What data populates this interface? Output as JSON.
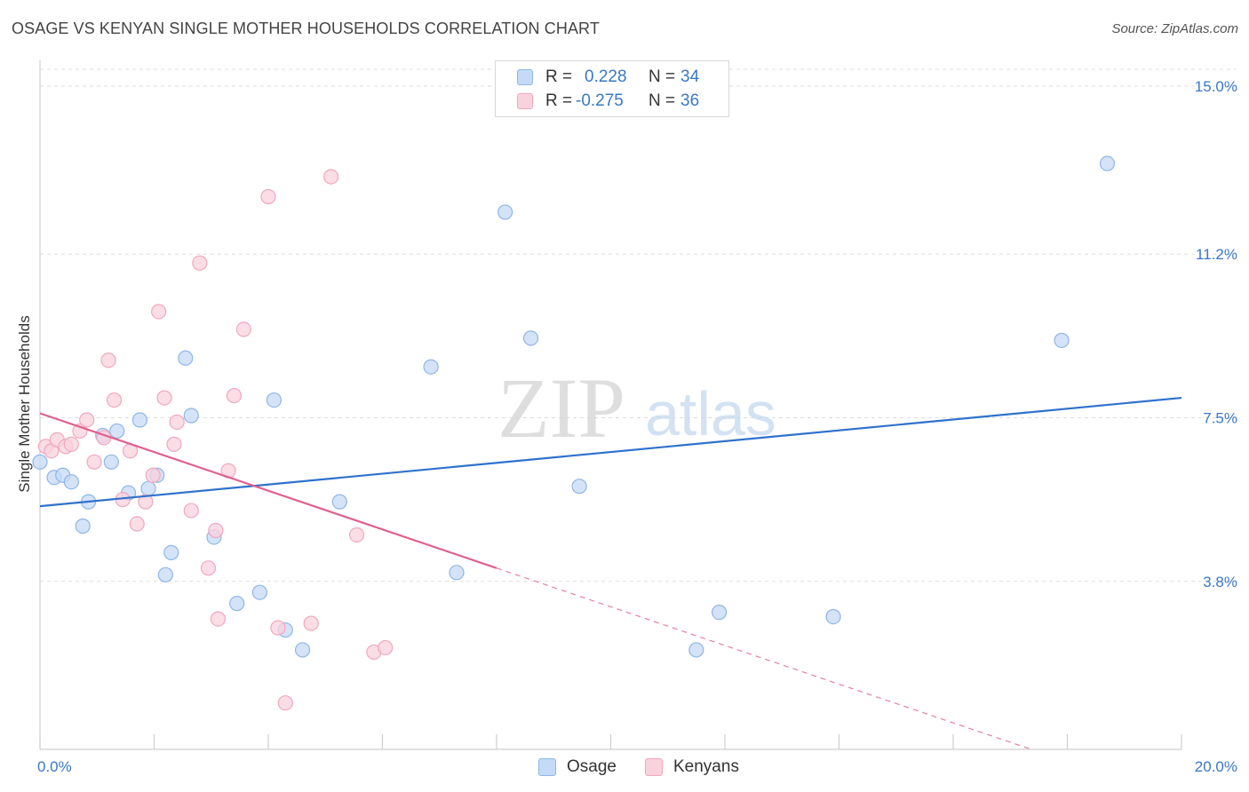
{
  "header": {
    "title": "OSAGE VS KENYAN SINGLE MOTHER HOUSEHOLDS CORRELATION CHART",
    "source": "Source: ZipAtlas.com"
  },
  "watermark": {
    "zip": "ZIP",
    "atlas": "atlas"
  },
  "legend": {
    "rows": [
      {
        "r_label": "R =",
        "r_value": "0.228",
        "n_label": "N =",
        "n_value": "34"
      },
      {
        "r_label": "R =",
        "r_value": "-0.275",
        "n_label": "N =",
        "n_value": "36"
      }
    ]
  },
  "colors": {
    "osage_fill": "#c5daf6",
    "osage_stroke": "#8fb6e8",
    "osage_line": "#2f72cc",
    "kenyan_fill": "#fad2de",
    "kenyan_stroke": "#f0a8bf",
    "kenyan_line": "#e0608e",
    "axis_text": "#3a78c8",
    "grid": "#dddddd"
  },
  "chart_data": {
    "type": "scatter",
    "title": "OSAGE VS KENYAN SINGLE MOTHER HOUSEHOLDS CORRELATION CHART",
    "xlabel": "",
    "ylabel": "Single Mother Households",
    "xlim": [
      0,
      20
    ],
    "ylim": [
      0,
      15.0
    ],
    "x_tick_labels": [
      "0.0%",
      "20.0%"
    ],
    "y_ticks": [
      3.8,
      7.5,
      11.2,
      15.0
    ],
    "y_tick_labels": [
      "3.8%",
      "7.5%",
      "11.2%",
      "15.0%"
    ],
    "grid": true,
    "legend_position": "top-center",
    "series": [
      {
        "name": "Osage",
        "r": 0.228,
        "n": 34,
        "points": [
          [
            0.0,
            6.5
          ],
          [
            0.25,
            6.15
          ],
          [
            0.4,
            6.2
          ],
          [
            0.55,
            6.05
          ],
          [
            0.75,
            5.05
          ],
          [
            0.85,
            5.6
          ],
          [
            1.1,
            7.1
          ],
          [
            1.25,
            6.5
          ],
          [
            1.35,
            7.2
          ],
          [
            1.55,
            5.8
          ],
          [
            1.75,
            7.45
          ],
          [
            1.9,
            5.9
          ],
          [
            2.05,
            6.2
          ],
          [
            2.2,
            3.95
          ],
          [
            2.3,
            4.45
          ],
          [
            2.55,
            8.85
          ],
          [
            2.65,
            7.55
          ],
          [
            3.05,
            4.8
          ],
          [
            3.45,
            3.3
          ],
          [
            3.85,
            3.55
          ],
          [
            4.1,
            7.9
          ],
          [
            4.3,
            2.7
          ],
          [
            4.6,
            2.25
          ],
          [
            5.25,
            5.6
          ],
          [
            6.85,
            8.65
          ],
          [
            7.3,
            4.0
          ],
          [
            8.15,
            12.15
          ],
          [
            8.6,
            9.3
          ],
          [
            9.45,
            5.95
          ],
          [
            11.5,
            2.25
          ],
          [
            11.9,
            3.1
          ],
          [
            13.9,
            3.0
          ],
          [
            17.9,
            9.25
          ],
          [
            18.7,
            13.25
          ]
        ],
        "trend": {
          "x": [
            0,
            20
          ],
          "y": [
            5.5,
            7.95
          ]
        }
      },
      {
        "name": "Kenyans",
        "r": -0.275,
        "n": 36,
        "points": [
          [
            0.1,
            6.85
          ],
          [
            0.2,
            6.75
          ],
          [
            0.3,
            7.0
          ],
          [
            0.45,
            6.85
          ],
          [
            0.55,
            6.9
          ],
          [
            0.7,
            7.2
          ],
          [
            0.82,
            7.45
          ],
          [
            0.95,
            6.5
          ],
          [
            1.12,
            7.05
          ],
          [
            1.2,
            8.8
          ],
          [
            1.3,
            7.9
          ],
          [
            1.45,
            5.65
          ],
          [
            1.58,
            6.75
          ],
          [
            1.7,
            5.1
          ],
          [
            1.85,
            5.6
          ],
          [
            1.98,
            6.2
          ],
          [
            2.08,
            9.9
          ],
          [
            2.18,
            7.95
          ],
          [
            2.35,
            6.9
          ],
          [
            2.4,
            7.4
          ],
          [
            2.65,
            5.4
          ],
          [
            2.8,
            11.0
          ],
          [
            2.95,
            4.1
          ],
          [
            3.08,
            4.95
          ],
          [
            3.12,
            2.95
          ],
          [
            3.3,
            6.3
          ],
          [
            3.4,
            8.0
          ],
          [
            3.57,
            9.5
          ],
          [
            4.0,
            12.5
          ],
          [
            4.17,
            2.75
          ],
          [
            4.3,
            1.05
          ],
          [
            4.75,
            2.85
          ],
          [
            5.1,
            12.95
          ],
          [
            5.55,
            4.85
          ],
          [
            5.85,
            2.2
          ],
          [
            6.05,
            2.3
          ]
        ],
        "trend": {
          "x": [
            0,
            8
          ],
          "y": [
            7.6,
            4.1
          ]
        },
        "trend_extension": {
          "x": [
            8,
            20
          ],
          "y": [
            4.1,
            -1.15
          ]
        }
      }
    ]
  },
  "bottom_legend": {
    "items": [
      "Osage",
      "Kenyans"
    ]
  }
}
